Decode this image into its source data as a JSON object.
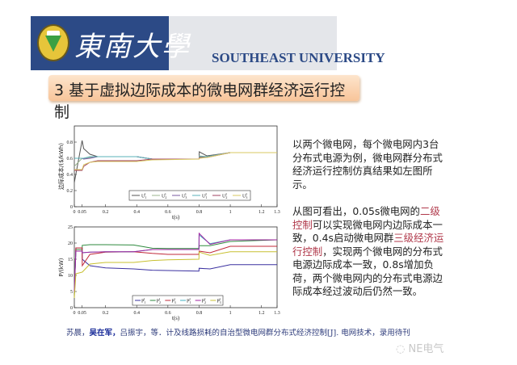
{
  "header": {
    "university_cn": "東南大學",
    "university_en": "SOUTHEAST UNIVERSITY",
    "logo_text": "東南大學",
    "colors": {
      "blue": "#2c4a86",
      "gray": "#e4e6ea"
    }
  },
  "slide_title": "3 基于虚拟边际成本的微电网群经济运行控制",
  "paragraphs": {
    "p1": "以两个微电网，每个微电网内3台分布式电源为例，微电网群分布式经济运行控制仿真结果如左图所示。",
    "p2": [
      {
        "text": "从图可看出，0.05s微电网的",
        "red": false
      },
      {
        "text": "二级控制",
        "red": true
      },
      {
        "text": "可以实现微电网内边际成本一致，0.4s启动微电网群",
        "red": false
      },
      {
        "text": "三级经济运行控制",
        "red": true
      },
      {
        "text": "，实现两个微电网的分布式电源边际成本一致，0.8s增加负荷，两个微电网内的分布式电源边际成本经过波动后仍然一致。",
        "red": false
      }
    ]
  },
  "reference": {
    "a1": "苏晨，",
    "a2": "吴在军，",
    "rest": "吕振宇，等．计及线路损耗的自治型微电网群分布式经济控制[J]. 电网技术，录用待刊"
  },
  "watermark": "NE电气",
  "chart_data": [
    {
      "type": "line",
      "ylabel": "边际成本/($/kWh)",
      "xlabel": "t(s)",
      "xlim": [
        0,
        1.3
      ],
      "ylim": [
        0,
        1
      ],
      "xticks": [
        "0",
        "0.05",
        "0.2",
        "0.4",
        "0.6",
        "0.8",
        "1",
        "1.2",
        "1.3"
      ],
      "yticks": [
        "0",
        "0.2",
        "0.4",
        "0.6",
        "0.8"
      ],
      "legend": "bottom-center",
      "x": [
        0,
        0.05,
        0.06,
        0.1,
        0.15,
        0.4,
        0.5,
        0.8,
        0.801,
        0.85,
        1,
        1.3
      ],
      "series": [
        {
          "name": {
            "b": "U",
            "sub": "1",
            "sup": "1"
          },
          "color": "#555555",
          "values": [
            0.3,
            0.82,
            0.72,
            0.65,
            0.62,
            0.62,
            0.59,
            0.59,
            0.68,
            0.63,
            0.67,
            0.67
          ]
        },
        {
          "name": {
            "b": "U",
            "sub": "2",
            "sup": "1"
          },
          "color": "#9bb58f",
          "values": [
            0.5,
            0.6,
            0.6,
            0.61,
            0.62,
            0.62,
            0.59,
            0.59,
            0.63,
            0.62,
            0.67,
            0.67
          ]
        },
        {
          "name": {
            "b": "U",
            "sub": "3",
            "sup": "1"
          },
          "color": "#7a5aa0",
          "values": [
            0.6,
            0.6,
            0.59,
            0.6,
            0.62,
            0.62,
            0.59,
            0.59,
            0.62,
            0.62,
            0.67,
            0.67
          ]
        },
        {
          "name": {
            "b": "U",
            "sub": "1",
            "sup": "2"
          },
          "color": "#5ab0b8",
          "values": [
            0.6,
            0.6,
            0.6,
            0.62,
            0.62,
            0.62,
            0.59,
            0.59,
            0.62,
            0.62,
            0.67,
            0.67
          ]
        },
        {
          "name": {
            "b": "U",
            "sub": "2",
            "sup": "2"
          },
          "color": "#a04060",
          "values": [
            0.45,
            0.45,
            0.5,
            0.55,
            0.57,
            0.57,
            0.59,
            0.59,
            0.61,
            0.61,
            0.67,
            0.67
          ]
        },
        {
          "name": {
            "b": "U",
            "sub": "3",
            "sup": "2"
          },
          "color": "#d8c860",
          "values": [
            0.46,
            0.46,
            0.52,
            0.55,
            0.56,
            0.56,
            0.58,
            0.59,
            0.6,
            0.61,
            0.67,
            0.67
          ]
        }
      ]
    },
    {
      "type": "line",
      "ylabel": "P/(kW)",
      "xlabel": "t(s)",
      "xlim": [
        0,
        1.3
      ],
      "ylim": [
        0,
        25
      ],
      "xticks": [
        "0",
        "0.05",
        "0.2",
        "0.4",
        "0.6",
        "0.8",
        "1",
        "1.2",
        "1.3"
      ],
      "yticks": [
        "0",
        "5",
        "10",
        "15",
        "20",
        "25"
      ],
      "legend": "bottom-center",
      "x": [
        0,
        0.01,
        0.05,
        0.051,
        0.1,
        0.2,
        0.38,
        0.5,
        0.6,
        0.799,
        0.8,
        0.87,
        1,
        1.3
      ],
      "series": [
        {
          "name": {
            "b": "P",
            "sub": "1",
            "sup": "1"
          },
          "color": "#3a30a0",
          "values": [
            5,
            18.5,
            18.5,
            15,
            13,
            12.3,
            12,
            11.6,
            11.5,
            11.3,
            12.2,
            12,
            13.3,
            13.3
          ]
        },
        {
          "name": {
            "b": "P",
            "sub": "2",
            "sup": "1"
          },
          "color": "#2e8a3e",
          "values": [
            5,
            18,
            18,
            19.3,
            19.5,
            19.5,
            19.4,
            18.4,
            18.3,
            18.3,
            19.2,
            19.2,
            20.5,
            21
          ]
        },
        {
          "name": {
            "b": "P",
            "sub": "3",
            "sup": "1"
          },
          "color": "#c0283a",
          "values": [
            5,
            18.5,
            18.5,
            13,
            16.5,
            17.2,
            17.3,
            16.8,
            16.5,
            16.5,
            17.5,
            17,
            19,
            19
          ]
        },
        {
          "name": {
            "b": "P",
            "sub": "1",
            "sup": "2"
          },
          "color": "#40b0c0",
          "values": [
            5,
            17.5,
            17.5,
            17,
            17.2,
            17.3,
            17.3,
            18,
            18,
            18,
            22.5,
            19.8,
            21,
            21
          ]
        },
        {
          "name": {
            "b": "P",
            "sub": "2",
            "sup": "2"
          },
          "color": "#a020a0",
          "values": [
            5,
            17.5,
            17.5,
            17,
            17.2,
            17.3,
            17.3,
            18,
            18,
            18,
            23,
            19.6,
            21,
            21
          ]
        },
        {
          "name": {
            "b": "P",
            "sub": "3",
            "sup": "2"
          },
          "color": "#c8c030",
          "values": [
            3,
            10.5,
            11,
            11,
            13.5,
            14,
            14,
            14.6,
            14.8,
            15,
            17.2,
            16.2,
            17.3,
            17.3
          ]
        }
      ]
    }
  ]
}
